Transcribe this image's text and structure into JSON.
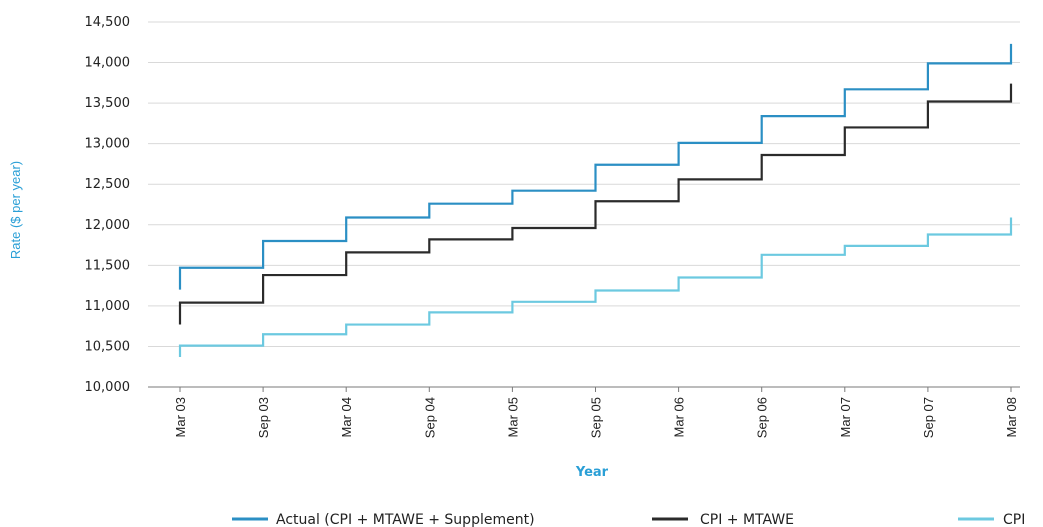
{
  "chart_data": {
    "type": "line",
    "step": true,
    "title": "",
    "xlabel": "Year",
    "ylabel": "Rate ($ per year)",
    "ylim": [
      10000,
      14500
    ],
    "yticks": [
      10000,
      10500,
      11000,
      11500,
      12000,
      12500,
      13000,
      13500,
      14000,
      14500
    ],
    "ytick_labels": [
      "10,000",
      "10,500",
      "11,000",
      "11,500",
      "12,000",
      "12,500",
      "13,000",
      "13,500",
      "14,000",
      "14,500"
    ],
    "categories": [
      "Mar 03",
      "Sep 03",
      "Mar 04",
      "Sep 04",
      "Mar 05",
      "Sep 05",
      "Mar 06",
      "Sep 06",
      "Mar 07",
      "Sep 07",
      "Mar 08"
    ],
    "grid": true,
    "legend_position": "bottom",
    "colors": {
      "axis_title": "#2a9fd6",
      "grid": "#d9d9d9",
      "axis": "#7a7a7a"
    },
    "series": [
      {
        "name": "Actual (CPI + MTAWE + Supplement)",
        "color": "#2b8fc4",
        "start": 11200,
        "values": [
          11470,
          11800,
          12090,
          12260,
          12420,
          12740,
          13010,
          13340,
          13670,
          13990,
          14230
        ]
      },
      {
        "name": "CPI + MTAWE",
        "color": "#2b2b2b",
        "start": 10770,
        "values": [
          11040,
          11380,
          11660,
          11820,
          11960,
          12290,
          12560,
          12860,
          13200,
          13520,
          13740
        ]
      },
      {
        "name": "CPI",
        "color": "#6cc9e0",
        "start": 10370,
        "values": [
          10510,
          10650,
          10770,
          10920,
          11050,
          11190,
          11350,
          11630,
          11740,
          11880,
          12090
        ]
      }
    ]
  }
}
